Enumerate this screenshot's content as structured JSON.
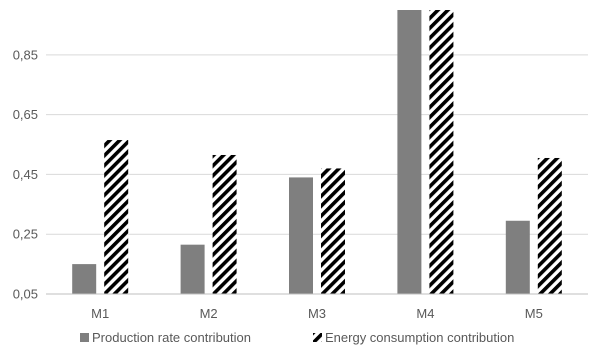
{
  "chart_data": {
    "type": "bar",
    "categories": [
      "M1",
      "M2",
      "M3",
      "M4",
      "M5"
    ],
    "series": [
      {
        "name": "Production rate contribution",
        "values": [
          0.15,
          0.215,
          0.44,
          1.0,
          0.295
        ],
        "color": "#7f7f7f",
        "pattern": "solid"
      },
      {
        "name": "Energy consumption contribution",
        "values": [
          0.565,
          0.515,
          0.47,
          1.0,
          0.505
        ],
        "color": "#000000",
        "pattern": "diagonal-stripes"
      }
    ],
    "ylim": [
      0.05,
      1.0
    ],
    "yticks": [
      0.05,
      0.25,
      0.45,
      0.65,
      0.85
    ],
    "ytick_labels": [
      "0,05",
      "0,25",
      "0,45",
      "0,65",
      "0,85"
    ],
    "grid": true,
    "legend_position": "bottom"
  }
}
